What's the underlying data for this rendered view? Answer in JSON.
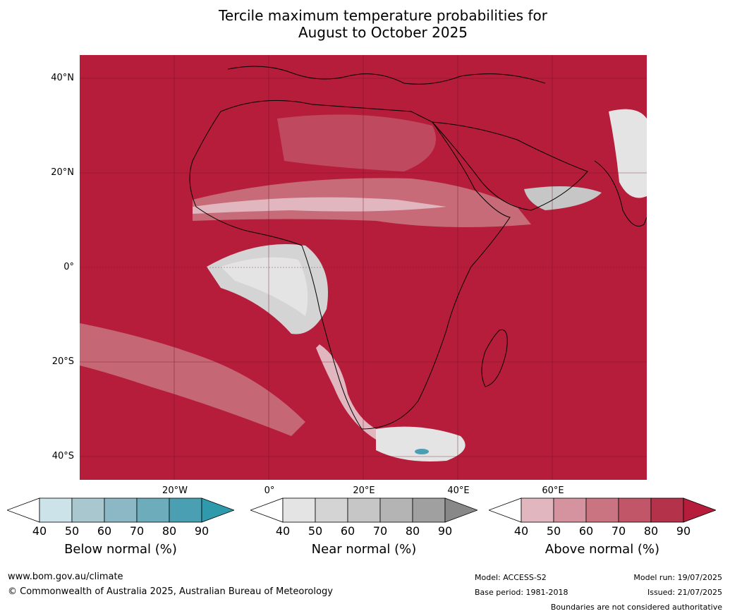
{
  "title_line1": "Tercile maximum temperature probabilities for",
  "title_line2": "August to October 2025",
  "latitudes": [
    "40°N",
    "20°N",
    "0°",
    "20°S",
    "40°S"
  ],
  "longitudes": [
    "20°W",
    "0°",
    "20°E",
    "40°E",
    "60°E"
  ],
  "colorbars": [
    {
      "label": "Below normal (%)",
      "ticks": [
        "40",
        "50",
        "60",
        "70",
        "80",
        "90"
      ],
      "colors": [
        "#ffffff",
        "#cce3ea",
        "#a8c7cf",
        "#8bb8c4",
        "#6cacbb",
        "#4a9fb2",
        "#2f9aab"
      ]
    },
    {
      "label": "Near normal (%)",
      "ticks": [
        "40",
        "50",
        "60",
        "70",
        "80",
        "90"
      ],
      "colors": [
        "#ffffff",
        "#e4e4e4",
        "#d4d4d4",
        "#c6c6c6",
        "#b4b4b4",
        "#a0a0a0",
        "#888888"
      ]
    },
    {
      "label": "Above normal (%)",
      "ticks": [
        "40",
        "50",
        "60",
        "70",
        "80",
        "90"
      ],
      "colors": [
        "#ffffff",
        "#e2b6bf",
        "#d4939e",
        "#c97480",
        "#c25669",
        "#b5324b",
        "#b51d3b"
      ]
    }
  ],
  "footer": {
    "website": "www.bom.gov.au/climate",
    "copyright": "© Commonwealth of Australia 2025, Australian Bureau of Meteorology",
    "model": "Model: ACCESS-S2",
    "base_period": "Base period: 1981-2018",
    "model_run": "Model run: 19/07/2025",
    "issued": "Issued: 21/07/2025",
    "disclaimer": "Boundaries are not considered authoritative"
  }
}
